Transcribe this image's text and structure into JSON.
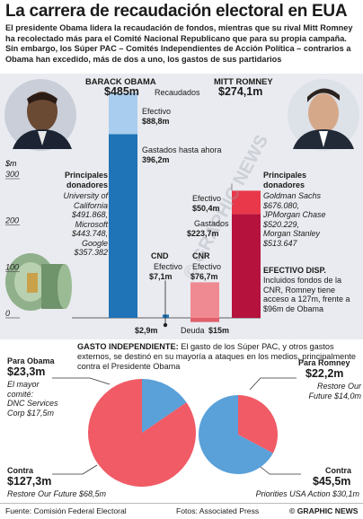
{
  "title": "La carrera de recaudación electoral en EUA",
  "deck": "El presidente Obama lidera la recaudación de fondos, mientras que su rival Mitt Romney ha recolectado más para el Comité Nacional Republicano que para su propia campaña. Sin embargo, los Súper PAC – Comités Independientes de Acción Política – contrarios a Obama han excedido, más de dos a uno, los gastos de sus partidarios",
  "chart_data": [
    {
      "type": "bar",
      "ylabel": "$m",
      "ylim": [
        0,
        300
      ],
      "yticks": [
        "300",
        "200",
        "100",
        "0"
      ],
      "series": [
        {
          "name": "BARACK OBAMA",
          "total": 485,
          "total_label": "$485m",
          "recaudados_label": "Recaudados",
          "cash": 88.8,
          "cash_label": "Efectivo",
          "cash_value": "$88,8m",
          "spent": 396.2,
          "spent_label": "Gastados hasta ahora",
          "spent_value": "396,2m",
          "color_cash": "#a9cdee",
          "color_spent": "#1f73b7"
        },
        {
          "name": "CND",
          "cash": 7.1,
          "cash_label": "Efectivo",
          "cash_value": "$7,1m",
          "debt": 2.9,
          "debt_value": "$2,9m",
          "debt_label": "Deuda",
          "color": "#1f73b7"
        },
        {
          "name": "CNR",
          "cash": 76.7,
          "cash_label": "Efectivo",
          "cash_value": "$76,7m",
          "debt": 15,
          "debt_value": "$15m",
          "color": "#f08a92"
        },
        {
          "name": "MITT ROMNEY",
          "total": 274.1,
          "total_label": "$274,1m",
          "cash": 50.4,
          "cash_label": "Efectivo",
          "cash_value": "$50,4m",
          "spent": 223.7,
          "spent_label": "Gastados",
          "spent_value": "$223,7m",
          "color_cash": "#e8384a",
          "color_spent": "#b5123e"
        }
      ]
    },
    {
      "type": "pie",
      "title": "Para Obama",
      "total": "$23,3m",
      "slices": [
        {
          "label": "Para Obama",
          "value": 23.3,
          "color": "#5aa0d9"
        },
        {
          "label": "Contra",
          "value": 127.3,
          "color": "#f05b66"
        }
      ]
    },
    {
      "type": "pie",
      "title": "Para Romney",
      "slices": [
        {
          "label": "Para Romney",
          "value": 22.2,
          "color": "#f05b66"
        },
        {
          "label": "Contra",
          "value": 45.5,
          "color": "#5aa0d9"
        }
      ]
    }
  ],
  "obama_donors": {
    "heading": "Principales donadores",
    "lines": [
      "University of California",
      "$491.868,",
      "Microsoft",
      "$443.748,",
      "Google",
      "$357.382"
    ]
  },
  "romney_donors": {
    "heading": "Principales donadores",
    "lines": [
      "Goldman Sachs",
      "$676.080,",
      "JPMorgan Chase",
      "$520.229,",
      "Morgan Stanley",
      "$513.647"
    ]
  },
  "efectivo_disp": {
    "heading": "EFECTIVO DISP.",
    "text": "Incluidos fondos de la CNR, Romney tiene acceso a 127m, frente a $96m de Obama"
  },
  "gasto": {
    "heading": "GASTO INDEPENDIENTE:",
    "text": "El gasto de los Súper PAC, y otros gastos externos, se destinó en su mayoría a ataques en los medios, principalmente contra el Presidente Obama"
  },
  "obama_pie": {
    "for_title": "Para Obama",
    "for_amount": "$23,3m",
    "for_detail": [
      "El mayor",
      "comité:",
      "DNC Services",
      "Corp $17,5m"
    ],
    "against_title": "Contra",
    "against_amount": "$127,3m",
    "against_detail": "Restore Our Future $68,5m"
  },
  "romney_pie": {
    "for_title": "Para Romney",
    "for_amount": "$22,2m",
    "for_detail": [
      "Restore Our",
      "Future $14,0m"
    ],
    "against_title": "Contra",
    "against_amount": "$45,5m",
    "against_detail": "Priorities USA Action $30,1m"
  },
  "watermark": "© GRAPHIC NEWS",
  "footer": {
    "source": "Fuente: Comisión Federal Electoral",
    "photos": "Fotos: Associated Press",
    "credit": "© GRAPHIC NEWS"
  }
}
